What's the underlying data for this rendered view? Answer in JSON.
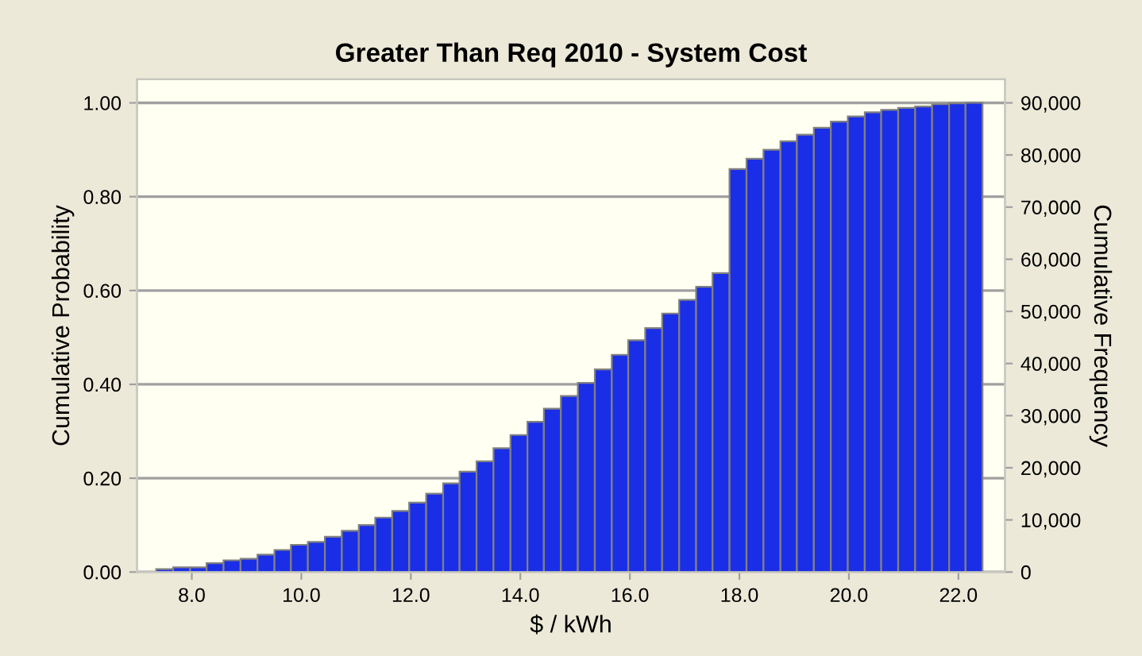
{
  "chart_data": {
    "type": "histogram",
    "title": "Greater Than Req 2010 - System Cost",
    "xlabel": "$ / kWh",
    "ylabel": "Cumulative Probability",
    "y2label": "Cumulative Frequency",
    "bins": [
      7.35,
      7.66,
      7.97,
      8.27,
      8.58,
      8.89,
      9.2,
      9.51,
      9.81,
      10.12,
      10.43,
      10.74,
      11.05,
      11.35,
      11.66,
      11.97,
      12.28,
      12.59,
      12.89,
      13.2,
      13.51,
      13.82,
      14.13,
      14.43,
      14.74,
      15.05,
      15.36,
      15.67,
      15.97,
      16.28,
      16.59,
      16.9,
      17.21,
      17.51,
      17.82,
      18.13,
      18.44,
      18.75,
      19.05,
      19.36,
      19.67,
      19.98,
      20.29,
      20.59,
      20.9,
      21.21,
      21.52,
      21.83,
      22.13,
      22.44
    ],
    "values": [
      0.006,
      0.01,
      0.01,
      0.019,
      0.025,
      0.028,
      0.037,
      0.047,
      0.058,
      0.064,
      0.075,
      0.088,
      0.1,
      0.116,
      0.13,
      0.148,
      0.167,
      0.189,
      0.214,
      0.236,
      0.264,
      0.292,
      0.32,
      0.348,
      0.375,
      0.403,
      0.432,
      0.463,
      0.494,
      0.52,
      0.551,
      0.58,
      0.608,
      0.637,
      0.859,
      0.881,
      0.9,
      0.918,
      0.932,
      0.947,
      0.96,
      0.971,
      0.98,
      0.985,
      0.989,
      0.992,
      0.997,
      0.999,
      1.0
    ],
    "color": "#1a2ee8",
    "xlim": [
      7.0,
      22.85
    ],
    "xticks": [
      {
        "value": 8,
        "label": "8.0"
      },
      {
        "value": 10,
        "label": "10.0"
      },
      {
        "value": 12,
        "label": "12.0"
      },
      {
        "value": 14,
        "label": "14.0"
      },
      {
        "value": 16,
        "label": "16.0"
      },
      {
        "value": 18,
        "label": "18.0"
      },
      {
        "value": 20,
        "label": "20.0"
      },
      {
        "value": 22,
        "label": "22.0"
      }
    ],
    "ylim": [
      0,
      1.05
    ],
    "yticks": [
      {
        "value": 0,
        "label": "0.00"
      },
      {
        "value": 0.2,
        "label": "0.20"
      },
      {
        "value": 0.4,
        "label": "0.40"
      },
      {
        "value": 0.6,
        "label": "0.60"
      },
      {
        "value": 0.8,
        "label": "0.80"
      },
      {
        "value": 1.0,
        "label": "1.00"
      }
    ],
    "y2lim": [
      0,
      94500
    ],
    "y2ticks": [
      0,
      {
        "value": 10000,
        "label": "10,000"
      },
      {
        "value": 20000,
        "label": "20,000"
      },
      {
        "value": 30000,
        "label": "30,000"
      },
      {
        "value": 40000,
        "label": "40,000"
      },
      {
        "value": 50000,
        "label": "50,000"
      },
      {
        "value": 60000,
        "label": "60,000"
      },
      {
        "value": 70000,
        "label": "70,000"
      },
      {
        "value": 80000,
        "label": "80,000"
      },
      {
        "value": 90000,
        "label": "90,000"
      }
    ],
    "grid": "y"
  }
}
